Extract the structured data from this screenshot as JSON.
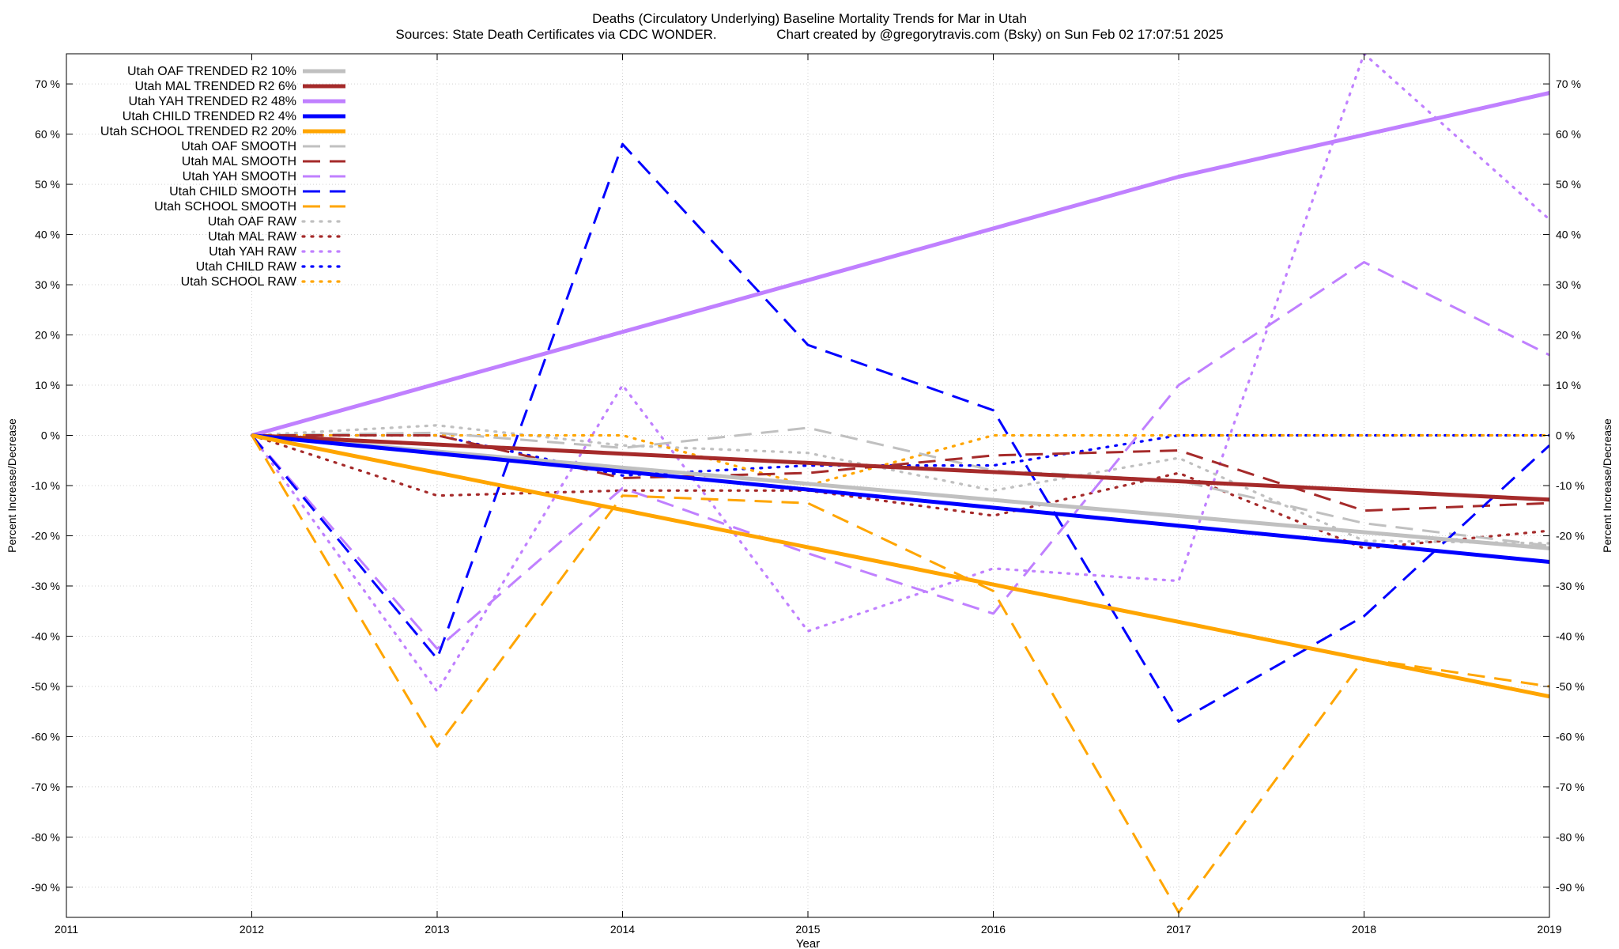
{
  "chart_data": {
    "type": "line",
    "title": "Deaths (Circulatory Underlying)  Baseline Mortality Trends for Mar in Utah",
    "subtitle_sources": "Sources: State Death Certificates via CDC WONDER.",
    "subtitle_credit": "Chart created by @gregorytravis.com (Bsky) on Sun Feb 02 17:07:51 2025",
    "xlabel": "Year",
    "ylabel": "Percent Increase/Decrease",
    "y2label": "Percent Increase/Decrease",
    "xlim": [
      2011,
      2019
    ],
    "ylim": [
      -96,
      76
    ],
    "x_ticks": [
      2011,
      2012,
      2013,
      2014,
      2015,
      2016,
      2017,
      2018,
      2019
    ],
    "y_ticks": [
      -90,
      -80,
      -70,
      -60,
      -50,
      -40,
      -30,
      -20,
      -10,
      0,
      10,
      20,
      30,
      40,
      50,
      60,
      70
    ],
    "y_tick_suffix": " %",
    "grid": true,
    "legend_position": "top-left",
    "series": [
      {
        "name": "Utah OAF TRENDED R2  10%",
        "style": "solid",
        "color": "#c0c0c0",
        "x": [
          2012,
          2019
        ],
        "values": [
          0,
          -22.5
        ]
      },
      {
        "name": "Utah MAL TRENDED R2   6%",
        "style": "solid",
        "color": "#a52a2a",
        "x": [
          2012,
          2019
        ],
        "values": [
          0,
          -12.8
        ]
      },
      {
        "name": "Utah YAH TRENDED R2  48%",
        "style": "solid",
        "color": "#c080ff",
        "x": [
          2012,
          2017,
          2019
        ],
        "values": [
          0,
          51.5,
          68.2
        ]
      },
      {
        "name": "Utah CHILD TRENDED R2   4%",
        "style": "solid",
        "color": "#0000ff",
        "x": [
          2012,
          2019
        ],
        "values": [
          0,
          -25.2
        ]
      },
      {
        "name": "Utah SCHOOL TRENDED R2  20%",
        "style": "solid",
        "color": "#ffa500",
        "x": [
          2012,
          2019
        ],
        "values": [
          0,
          -52
        ]
      },
      {
        "name": "Utah OAF SMOOTH",
        "style": "dash",
        "color": "#c0c0c0",
        "x": [
          2012,
          2013,
          2014,
          2015,
          2016,
          2017,
          2018,
          2019
        ],
        "values": [
          0,
          0.5,
          -2.5,
          1.5,
          -7,
          -9,
          -17.5,
          -22
        ]
      },
      {
        "name": "Utah MAL SMOOTH",
        "style": "dash",
        "color": "#a52a2a",
        "x": [
          2012,
          2013,
          2014,
          2015,
          2016,
          2017,
          2018,
          2019
        ],
        "values": [
          0,
          0,
          -8.5,
          -7.5,
          -4,
          -3,
          -15,
          -13.5
        ]
      },
      {
        "name": "Utah YAH SMOOTH",
        "style": "dash",
        "color": "#c080ff",
        "x": [
          2012,
          2013,
          2014,
          2015,
          2016,
          2017,
          2018,
          2019
        ],
        "values": [
          0,
          -42.5,
          -10.5,
          -23.5,
          -35.5,
          10,
          34.5,
          16
        ]
      },
      {
        "name": "Utah CHILD SMOOTH",
        "style": "dash",
        "color": "#0000ff",
        "x": [
          2012,
          2013,
          2014,
          2015,
          2016,
          2017,
          2018,
          2019
        ],
        "values": [
          0,
          -44.5,
          58,
          18,
          5,
          -57,
          -36,
          -2
        ]
      },
      {
        "name": "Utah SCHOOL SMOOTH",
        "style": "dash",
        "color": "#ffa500",
        "x": [
          2012,
          2013,
          2014,
          2015,
          2016,
          2017,
          2018,
          2019
        ],
        "values": [
          0,
          -62,
          -12,
          -13.5,
          -31,
          -95,
          -44.5,
          -50
        ]
      },
      {
        "name": "Utah OAF RAW",
        "style": "dot",
        "color": "#c0c0c0",
        "x": [
          2012,
          2013,
          2014,
          2015,
          2016,
          2017,
          2018,
          2019
        ],
        "values": [
          0,
          2,
          -2,
          -3.5,
          -11,
          -4.5,
          -21,
          -21.5
        ]
      },
      {
        "name": "Utah MAL RAW",
        "style": "dot",
        "color": "#a52a2a",
        "x": [
          2012,
          2013,
          2014,
          2015,
          2016,
          2017,
          2018,
          2019
        ],
        "values": [
          0,
          -12,
          -11,
          -11,
          -16,
          -7.5,
          -22.5,
          -19
        ]
      },
      {
        "name": "Utah YAH RAW",
        "style": "dot",
        "color": "#c080ff",
        "x": [
          2012,
          2013,
          2014,
          2015,
          2016,
          2017,
          2018,
          2019
        ],
        "values": [
          0,
          -51,
          10,
          -39,
          -26.5,
          -29,
          76,
          43
        ]
      },
      {
        "name": "Utah CHILD RAW",
        "style": "dot",
        "color": "#0000ff",
        "x": [
          2012,
          2013,
          2014,
          2015,
          2016,
          2017,
          2018,
          2019
        ],
        "values": [
          0,
          0,
          -8,
          -6,
          -6,
          0,
          0,
          0
        ]
      },
      {
        "name": "Utah SCHOOL RAW",
        "style": "dot",
        "color": "#ffa500",
        "x": [
          2012,
          2013,
          2014,
          2015,
          2016,
          2017,
          2018,
          2019
        ],
        "values": [
          0,
          0,
          0,
          -10,
          0,
          0,
          0,
          0
        ]
      }
    ]
  }
}
